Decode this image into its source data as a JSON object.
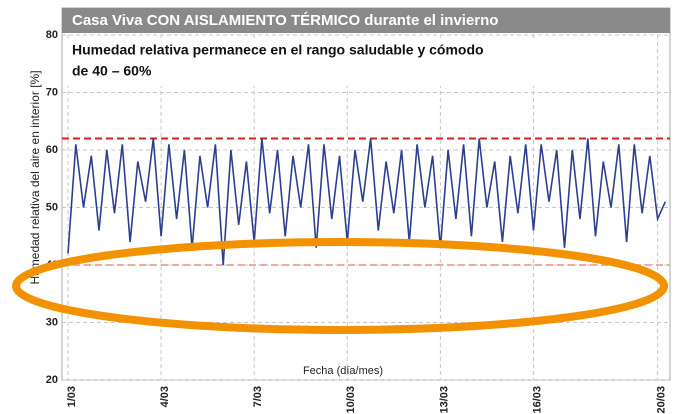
{
  "chart_data": {
    "type": "line",
    "title": "Casa Viva CON AISLAMIENTO TÉRMICO durante el invierno",
    "subtitle": [
      "Humedad relativa permanece en el rango saludable y cómodo",
      "de 40 – 60%"
    ],
    "xlabel": "Fecha (día/mes)",
    "ylabel": "Humedad relativa del aire en interior [%]",
    "xlim": [
      1,
      20.4
    ],
    "xticks": [
      {
        "value": 1,
        "label": "1/03"
      },
      {
        "value": 4,
        "label": "4/03"
      },
      {
        "value": 7,
        "label": "7/03"
      },
      {
        "value": 10,
        "label": "10/03"
      },
      {
        "value": 13,
        "label": "13/03"
      },
      {
        "value": 16,
        "label": "16/03"
      },
      {
        "value": 20,
        "label": "20/03"
      }
    ],
    "ylim": [
      20,
      80
    ],
    "yticks": [
      20,
      30,
      40,
      50,
      60,
      70,
      80
    ],
    "grid": true,
    "reference_lines": [
      {
        "value": 62,
        "color": "#d62020"
      },
      {
        "value": 40,
        "color": "#f0a8a8"
      }
    ],
    "series": [
      {
        "color": "#2e3f8f",
        "x": [
          1,
          1.25,
          1.5,
          1.75,
          2,
          2.25,
          2.5,
          2.75,
          3,
          3.25,
          3.5,
          3.75,
          4,
          4.25,
          4.5,
          4.75,
          5,
          5.25,
          5.5,
          5.75,
          6,
          6.25,
          6.5,
          6.75,
          7,
          7.25,
          7.5,
          7.75,
          8,
          8.25,
          8.5,
          8.75,
          9,
          9.25,
          9.5,
          9.75,
          10,
          10.25,
          10.5,
          10.75,
          11,
          11.25,
          11.5,
          11.75,
          12,
          12.25,
          12.5,
          12.75,
          13,
          13.25,
          13.5,
          13.75,
          14,
          14.25,
          14.5,
          14.75,
          15,
          15.25,
          15.5,
          15.75,
          16,
          16.25,
          16.5,
          16.75,
          17,
          17.25,
          17.5,
          17.75,
          18,
          18.25,
          18.5,
          18.75,
          19,
          19.25,
          19.5,
          19.75,
          20,
          20.25
        ],
        "values": [
          42,
          61,
          50,
          59,
          46,
          60,
          49,
          61,
          44,
          58,
          51,
          62,
          45,
          61,
          48,
          60,
          43,
          59,
          50,
          61,
          40,
          60,
          47,
          58,
          44,
          62,
          49,
          60,
          45,
          59,
          50,
          61,
          43,
          61,
          48,
          59,
          44,
          60,
          51,
          62,
          46,
          58,
          49,
          60,
          44,
          61,
          50,
          59,
          43,
          60,
          48,
          61,
          45,
          62,
          50,
          58,
          44,
          59,
          49,
          61,
          46,
          61,
          51,
          60,
          43,
          60,
          48,
          62,
          45,
          58,
          50,
          61,
          44,
          61,
          49,
          59,
          48,
          51
        ]
      }
    ]
  }
}
